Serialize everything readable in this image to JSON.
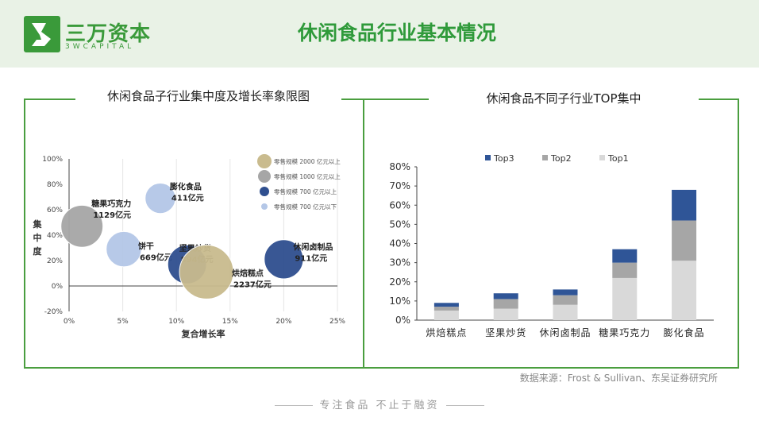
{
  "brand": {
    "name_cn": "三万资本",
    "name_en": "3WCAPITAL"
  },
  "page_title": "休闲食品行业基本情况",
  "source_text": "数据来源：Frost & Sullivan、东吴证券研究所",
  "slogan": "专注食品   不止于融资",
  "colors": {
    "accent": "#3a9a3a",
    "frame": "#4a9e3f"
  },
  "left_panel": {
    "title": "休闲食品子行业集中度及增长率象限图"
  },
  "right_panel": {
    "title": "休闲食品不同子行业TOP集中"
  },
  "chart_data": [
    {
      "type": "scatter",
      "title": "休闲食品子行业集中度及增长率象限图",
      "xlabel": "复合增长率",
      "ylabel": "集中度",
      "xlim": [
        0,
        25
      ],
      "ylim": [
        -20,
        100
      ],
      "xticks": [
        0,
        5,
        10,
        15,
        20,
        25
      ],
      "xtick_labels": [
        "0%",
        "5%",
        "10%",
        "15%",
        "20%",
        "25%"
      ],
      "yticks": [
        -20,
        0,
        20,
        40,
        60,
        80,
        100
      ],
      "ytick_labels": [
        "-20%",
        "0%",
        "20%",
        "40%",
        "60%",
        "80%",
        "100%"
      ],
      "grid": "vertical",
      "legend_position": "top-right",
      "size_legend": [
        {
          "label": "零售规模 2000 亿元以上",
          "color": "#c9bb8e"
        },
        {
          "label": "零售规模 1000 亿元以上",
          "color": "#a6a6a6"
        },
        {
          "label": "零售规模 700 亿元以上",
          "color": "#2f4f8f"
        },
        {
          "label": "零售规模 700 亿元以下",
          "color": "#b4c7e7"
        }
      ],
      "points": [
        {
          "name": "糖果巧克力",
          "value_label": "1129亿元",
          "x": 1.2,
          "y": 47,
          "size": 1129,
          "color": "#a6a6a6"
        },
        {
          "name": "膨化食品",
          "value_label": "411亿元",
          "x": 8.5,
          "y": 69,
          "size": 411,
          "color": "#b4c7e7"
        },
        {
          "name": "饼干",
          "value_label": "669亿元",
          "x": 5.1,
          "y": 29,
          "size": 669,
          "color": "#b4c7e7"
        },
        {
          "name": "坚果炒货",
          "value_label": "894亿元",
          "x": 11.0,
          "y": 17,
          "size": 894,
          "color": "#2f4f8f"
        },
        {
          "name": "烘焙糕点",
          "value_label": "2237亿元",
          "x": 12.8,
          "y": 11,
          "size": 2237,
          "color": "#c9bb8e"
        },
        {
          "name": "休闲卤制品",
          "value_label": "911亿元",
          "x": 20.0,
          "y": 21,
          "size": 911,
          "color": "#2f4f8f"
        }
      ]
    },
    {
      "type": "bar",
      "stacked": true,
      "title": "休闲食品不同子行业TOP集中",
      "categories": [
        "烘焙糕点",
        "坚果炒货",
        "休闲卤制品",
        "糖果巧克力",
        "膨化食品"
      ],
      "series": [
        {
          "name": "Top1",
          "color": "#d9d9d9",
          "values": [
            5,
            6,
            8,
            22,
            31
          ]
        },
        {
          "name": "Top2",
          "color": "#a6a6a6",
          "values": [
            2,
            5,
            5,
            8,
            21
          ]
        },
        {
          "name": "Top3",
          "color": "#2f5597",
          "values": [
            2,
            3,
            3,
            7,
            16
          ]
        }
      ],
      "legend_order": [
        "Top3",
        "Top2",
        "Top1"
      ],
      "ylim": [
        0,
        80
      ],
      "yticks": [
        0,
        10,
        20,
        30,
        40,
        50,
        60,
        70,
        80
      ],
      "ytick_labels": [
        "0%",
        "10%",
        "20%",
        "30%",
        "40%",
        "50%",
        "60%",
        "70%",
        "80%"
      ],
      "legend_position": "top-left"
    }
  ]
}
